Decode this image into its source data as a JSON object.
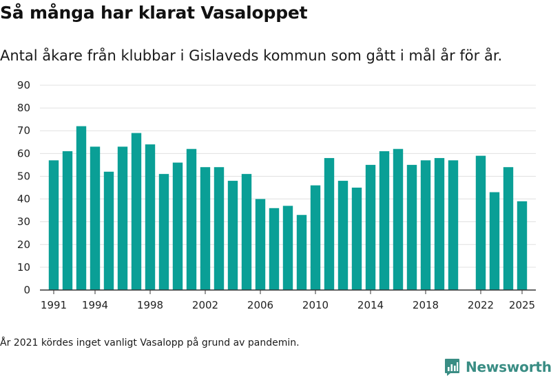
{
  "header": {
    "title": "Så många har klarat Vasaloppet",
    "subtitle": "Antal åkare från klubbar i Gislaveds kommun som gått i mål år för år."
  },
  "footnote": "År 2021 kördes inget vanligt Vasalopp på grund av pandemin.",
  "brand": {
    "name": "Newsworthy",
    "icon": "newsworthy-logo-icon",
    "color": "#3a8d84"
  },
  "colors": {
    "bar": "#0a9f96",
    "grid": "#e0e0e0",
    "axis": "#333333"
  },
  "chart_data": {
    "type": "bar",
    "title": "Så många har klarat Vasaloppet",
    "xlabel": "",
    "ylabel": "",
    "ylim": [
      0,
      90
    ],
    "yticks": [
      0,
      10,
      20,
      30,
      40,
      50,
      60,
      70,
      80,
      90
    ],
    "xlim": [
      1990,
      2026
    ],
    "xticks": [
      1991,
      1994,
      1998,
      2002,
      2006,
      2010,
      2014,
      2018,
      2022,
      2025
    ],
    "x": [
      1991,
      1992,
      1993,
      1994,
      1995,
      1996,
      1997,
      1998,
      1999,
      2000,
      2001,
      2002,
      2003,
      2004,
      2005,
      2006,
      2007,
      2008,
      2009,
      2010,
      2011,
      2012,
      2013,
      2014,
      2015,
      2016,
      2017,
      2018,
      2019,
      2020,
      2022,
      2023,
      2024,
      2025
    ],
    "values": [
      57,
      61,
      72,
      63,
      52,
      63,
      69,
      64,
      51,
      56,
      62,
      54,
      54,
      48,
      51,
      40,
      36,
      37,
      33,
      46,
      58,
      48,
      45,
      55,
      61,
      62,
      55,
      57,
      58,
      57,
      59,
      43,
      54,
      39
    ]
  }
}
